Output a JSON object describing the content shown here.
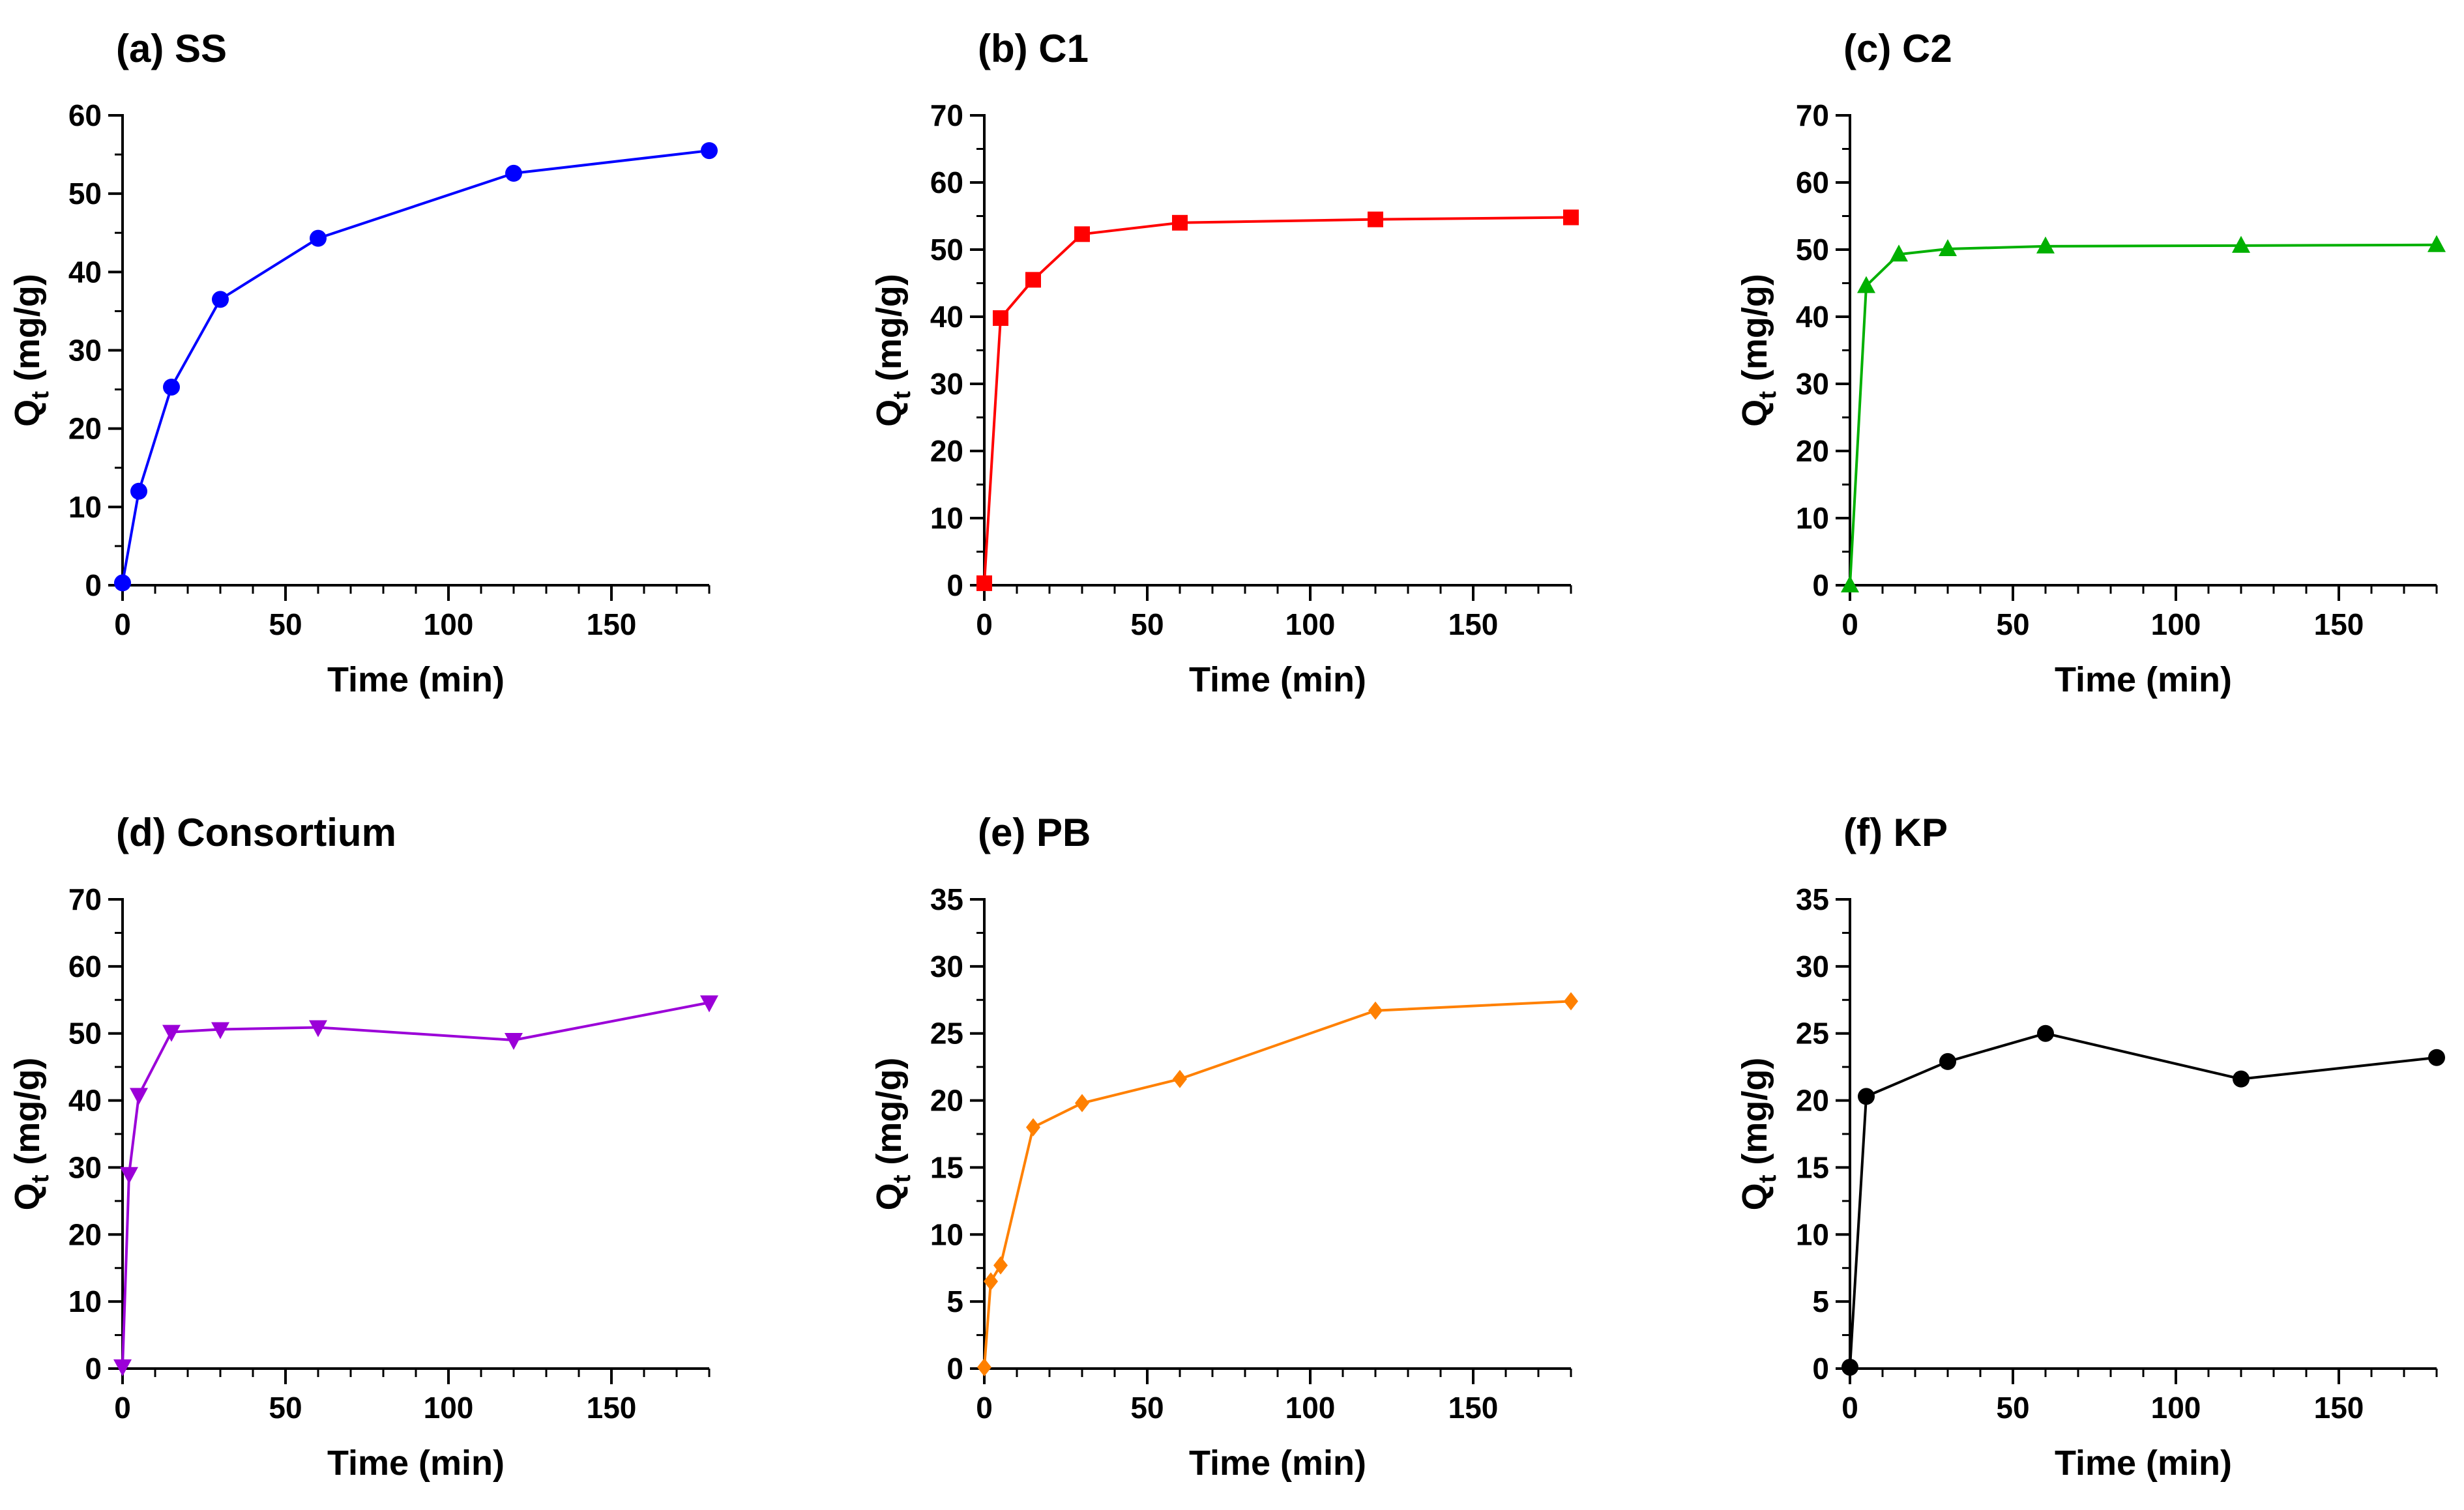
{
  "chart_data": [
    {
      "type": "line",
      "panel": "(a)",
      "title": "(a) SS",
      "xlabel": "Time (min)",
      "ylabel": "Q",
      "ylabel_sub": "t",
      "ylabel_unit": " (mg/g)",
      "xlim": [
        0,
        180
      ],
      "ylim": [
        0,
        60
      ],
      "xticks": [
        0,
        50,
        100,
        150
      ],
      "yticks": [
        0,
        10,
        20,
        30,
        40,
        50,
        60
      ],
      "color": "#0000ff",
      "marker": "circle",
      "x": [
        0,
        5,
        15,
        30,
        60,
        120,
        180
      ],
      "y": [
        0.3,
        12,
        25.3,
        36.5,
        44.3,
        52.6,
        55.5
      ]
    },
    {
      "type": "line",
      "panel": "(b)",
      "title": "(b) C1",
      "xlabel": "Time (min)",
      "ylabel": "Q",
      "ylabel_sub": "t",
      "ylabel_unit": " (mg/g)",
      "xlim": [
        0,
        180
      ],
      "ylim": [
        0,
        70
      ],
      "xticks": [
        0,
        50,
        100,
        150
      ],
      "yticks": [
        0,
        10,
        20,
        30,
        40,
        50,
        60,
        70
      ],
      "color": "#ff0000",
      "marker": "square",
      "x": [
        0,
        5,
        15,
        30,
        60,
        120,
        180
      ],
      "y": [
        0.3,
        39.8,
        45.5,
        52.3,
        54,
        54.5,
        54.8
      ]
    },
    {
      "type": "line",
      "panel": "(c)",
      "title": "(c) C2",
      "xlabel": "Time (min)",
      "ylabel": "Q",
      "ylabel_sub": "t",
      "ylabel_unit": " (mg/g)",
      "xlim": [
        0,
        180
      ],
      "ylim": [
        0,
        70
      ],
      "xticks": [
        0,
        50,
        100,
        150
      ],
      "yticks": [
        0,
        10,
        20,
        30,
        40,
        50,
        60,
        70
      ],
      "color": "#00b000",
      "marker": "triangle-up",
      "x": [
        0,
        5,
        15,
        30,
        60,
        120,
        180
      ],
      "y": [
        0,
        44.6,
        49.3,
        50.1,
        50.5,
        50.6,
        50.7
      ]
    },
    {
      "type": "line",
      "panel": "(d)",
      "title": "(d) Consortium",
      "xlabel": "Time (min)",
      "ylabel": "Q",
      "ylabel_sub": "t",
      "ylabel_unit": " (mg/g)",
      "xlim": [
        0,
        180
      ],
      "ylim": [
        0,
        70
      ],
      "xticks": [
        0,
        50,
        100,
        150
      ],
      "yticks": [
        0,
        10,
        20,
        30,
        40,
        50,
        60,
        70
      ],
      "color": "#9b00d8",
      "marker": "triangle-down",
      "x": [
        0,
        2,
        5,
        15,
        30,
        60,
        120,
        180
      ],
      "y": [
        0.3,
        29,
        40.8,
        50.2,
        50.6,
        50.9,
        49,
        54.6
      ]
    },
    {
      "type": "line",
      "panel": "(e)",
      "title": "(e) PB",
      "xlabel": "Time (min)",
      "ylabel": "Q",
      "ylabel_sub": "t",
      "ylabel_unit": " (mg/g)",
      "xlim": [
        0,
        180
      ],
      "ylim": [
        0,
        35
      ],
      "xticks": [
        0,
        50,
        100,
        150
      ],
      "yticks": [
        0,
        5,
        10,
        15,
        20,
        25,
        30,
        35
      ],
      "color": "#ff8000",
      "marker": "diamond",
      "x": [
        0,
        2,
        5,
        15,
        30,
        60,
        120,
        180
      ],
      "y": [
        0.1,
        6.5,
        7.7,
        18,
        19.8,
        21.6,
        26.7,
        27.4
      ]
    },
    {
      "type": "line",
      "panel": "(f)",
      "title": "(f) KP",
      "xlabel": "Time (min)",
      "ylabel": "Q",
      "ylabel_sub": "t",
      "ylabel_unit": " (mg/g)",
      "xlim": [
        0,
        180
      ],
      "ylim": [
        0,
        35
      ],
      "xticks": [
        0,
        50,
        100,
        150
      ],
      "yticks": [
        0,
        5,
        10,
        15,
        20,
        25,
        30,
        35
      ],
      "color": "#000000",
      "marker": "circle",
      "x": [
        0,
        5,
        30,
        60,
        120,
        180
      ],
      "y": [
        0.1,
        20.3,
        22.9,
        25,
        21.6,
        23.2
      ]
    }
  ]
}
